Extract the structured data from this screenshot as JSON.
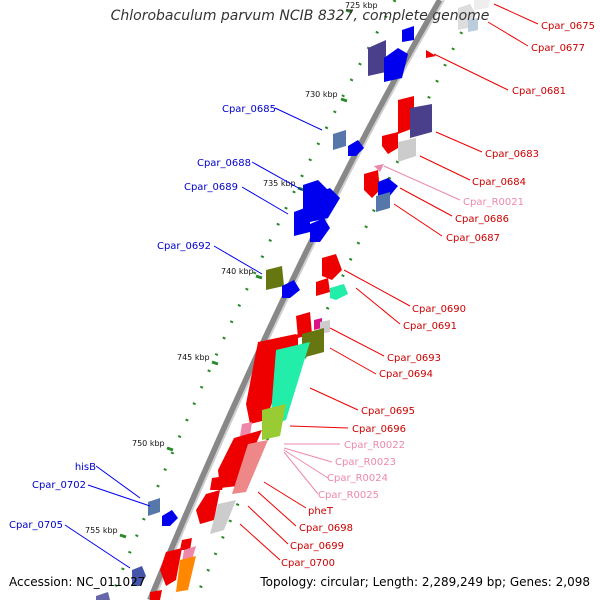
{
  "title": "Chlorobaculum parvum NCIB 8327, complete genome",
  "accession": "Accession: NC_011027",
  "summary": "Topology: circular; Length: 2,289,249 bp; Genes: 2,098",
  "scale_labels": [
    "725 kbp",
    "730 kbp",
    "735 kbp",
    "740 kbp",
    "745 kbp",
    "750 kbp",
    "755 kbp"
  ],
  "left_labels": [
    "Cpar_0685",
    "Cpar_0688",
    "Cpar_0689",
    "Cpar_0692",
    "hisB",
    "Cpar_0702",
    "Cpar_0705"
  ],
  "right_labels": [
    "Cpar_0675",
    "Cpar_0677",
    "Cpar_0681",
    "Cpar_0683",
    "Cpar_0684",
    "Cpar_R0021",
    "Cpar_0686",
    "Cpar_0687",
    "Cpar_0690",
    "Cpar_0691",
    "Cpar_0693",
    "Cpar_0694",
    "Cpar_0695",
    "Cpar_0696",
    "Cpar_R0022",
    "Cpar_R0023",
    "Cpar_R0024",
    "Cpar_R0025",
    "pheT",
    "Cpar_0698",
    "Cpar_0699",
    "Cpar_0700"
  ],
  "colors": {
    "forward": "#0000ee",
    "reverse": "#ee0000",
    "rna": "#ee88aa",
    "backbone": "#888888",
    "tick": "#339933"
  }
}
